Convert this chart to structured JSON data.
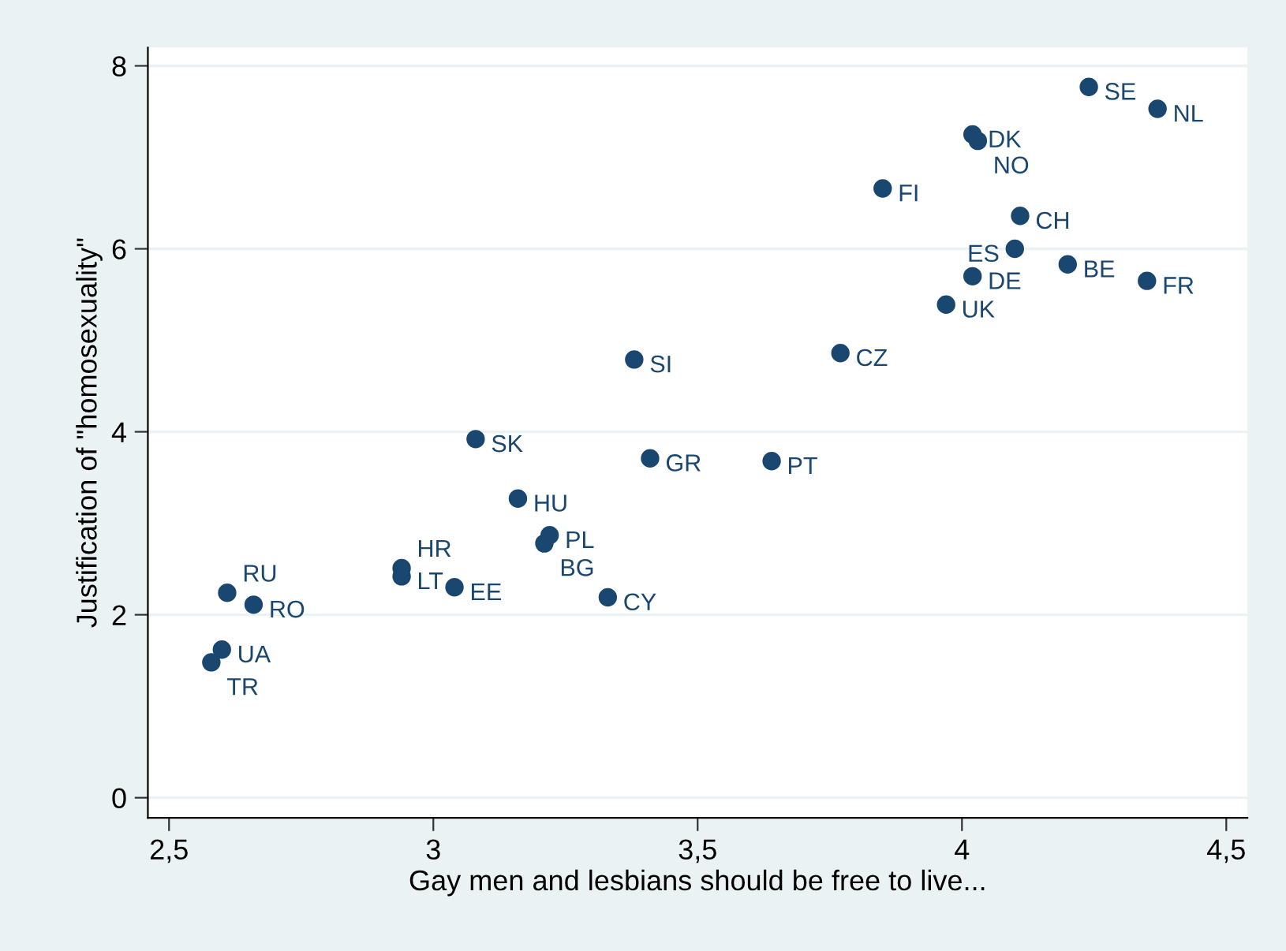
{
  "chart_data": {
    "type": "scatter",
    "xlabel": "Gay men and lesbians should be free to live...",
    "ylabel": "Justification of \"homosexuality\"",
    "x": [
      4.24,
      4.37,
      4.02,
      4.03,
      3.85,
      4.11,
      4.1,
      4.2,
      4.35,
      4.02,
      3.97,
      3.77,
      3.38,
      3.08,
      3.41,
      3.64,
      3.16,
      3.22,
      3.21,
      2.94,
      2.94,
      3.04,
      3.33,
      2.61,
      2.66,
      2.6,
      2.58
    ],
    "series": [
      {
        "color": "#1a476f",
        "values": [
          7.77,
          7.53,
          7.25,
          7.18,
          6.66,
          6.36,
          6.0,
          5.83,
          5.65,
          5.7,
          5.39,
          4.86,
          4.79,
          3.92,
          3.71,
          3.68,
          3.27,
          2.87,
          2.78,
          2.51,
          2.42,
          2.3,
          2.19,
          2.24,
          2.11,
          1.62,
          1.48
        ]
      }
    ],
    "annotations": [
      {
        "text": "SE",
        "x": 4.24,
        "y": 7.77
      },
      {
        "text": "NL",
        "x": 4.37,
        "y": 7.53
      },
      {
        "text": "DK",
        "x": 4.02,
        "y": 7.25
      },
      {
        "text": "NO",
        "x": 4.03,
        "y": 7.18
      },
      {
        "text": "FI",
        "x": 3.85,
        "y": 6.66
      },
      {
        "text": "CH",
        "x": 4.11,
        "y": 6.36
      },
      {
        "text": "ES",
        "x": 4.1,
        "y": 6.0
      },
      {
        "text": "BE",
        "x": 4.2,
        "y": 5.83
      },
      {
        "text": "FR",
        "x": 4.35,
        "y": 5.65
      },
      {
        "text": "DE",
        "x": 4.02,
        "y": 5.7
      },
      {
        "text": "UK",
        "x": 3.97,
        "y": 5.39
      },
      {
        "text": "CZ",
        "x": 3.77,
        "y": 4.86
      },
      {
        "text": "SI",
        "x": 3.38,
        "y": 4.79
      },
      {
        "text": "SK",
        "x": 3.08,
        "y": 3.92
      },
      {
        "text": "GR",
        "x": 3.41,
        "y": 3.71
      },
      {
        "text": "PT",
        "x": 3.64,
        "y": 3.68
      },
      {
        "text": "HU",
        "x": 3.16,
        "y": 3.27
      },
      {
        "text": "PL",
        "x": 3.22,
        "y": 2.87
      },
      {
        "text": "BG",
        "x": 3.21,
        "y": 2.78
      },
      {
        "text": "HR",
        "x": 2.94,
        "y": 2.51
      },
      {
        "text": "LT",
        "x": 2.94,
        "y": 2.42
      },
      {
        "text": "EE",
        "x": 3.04,
        "y": 2.3
      },
      {
        "text": "CY",
        "x": 3.33,
        "y": 2.19
      },
      {
        "text": "RU",
        "x": 2.61,
        "y": 2.24
      },
      {
        "text": "RO",
        "x": 2.66,
        "y": 2.11
      },
      {
        "text": "UA",
        "x": 2.6,
        "y": 1.62
      },
      {
        "text": "TR",
        "x": 2.58,
        "y": 1.48
      }
    ],
    "xlim": [
      2.46,
      4.54
    ],
    "ylim": [
      -0.22,
      8.2
    ],
    "xticks": [
      {
        "value": 2.5,
        "label": "2,5"
      },
      3,
      {
        "value": 3.5,
        "label": "3,5"
      },
      4,
      {
        "value": 4.5,
        "label": "4,5"
      }
    ],
    "yticks": [
      0,
      2,
      4,
      6,
      8
    ],
    "grid": "y",
    "marker": "circle",
    "legend": false
  }
}
